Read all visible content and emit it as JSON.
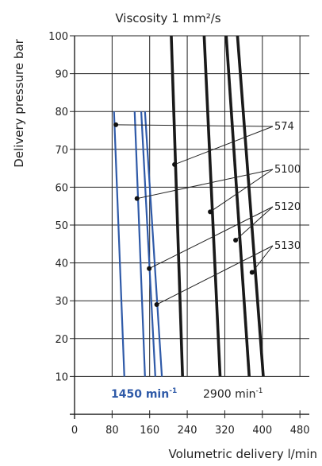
{
  "chart_data": {
    "type": "line",
    "title": "Viscosity 1 mm²/s",
    "xlabel": "Volumetric delivery l/min",
    "ylabel": "Delivery pressure bar",
    "xlim": [
      0,
      500
    ],
    "ylim": [
      0,
      100
    ],
    "x_ticks": [
      0,
      80,
      160,
      240,
      320,
      400,
      480
    ],
    "y_ticks": [
      10,
      20,
      30,
      40,
      50,
      60,
      70,
      80,
      90,
      100
    ],
    "grid": true,
    "series_groups": [
      {
        "label": "1450 min",
        "label_sup": "-1",
        "color": "#2f5aa8",
        "series": [
          {
            "x": [
              84,
              106
            ],
            "y": [
              80,
              10
            ]
          },
          {
            "x": [
              128,
              150
            ],
            "y": [
              80,
              10
            ]
          },
          {
            "x": [
              142,
              172
            ],
            "y": [
              80,
              10
            ]
          },
          {
            "x": [
              150,
              186
            ],
            "y": [
              80,
              10
            ]
          }
        ]
      },
      {
        "label": "2900 min",
        "label_sup": "-1",
        "color": "#1a1a1a",
        "series": [
          {
            "x": [
              206,
              230
            ],
            "y": [
              100,
              10
            ]
          },
          {
            "x": [
              276,
              310
            ],
            "y": [
              100,
              10
            ]
          },
          {
            "x": [
              323,
              372
            ],
            "y": [
              100,
              10
            ]
          },
          {
            "x": [
              347,
              402
            ],
            "y": [
              100,
              10
            ]
          }
        ]
      }
    ],
    "callouts": [
      {
        "label": "574",
        "points": [
          [
            88,
            76.5
          ],
          [
            213,
            66
          ]
        ]
      },
      {
        "label": "5100",
        "points": [
          [
            133,
            57
          ],
          [
            289,
            53.5
          ]
        ]
      },
      {
        "label": "5120",
        "points": [
          [
            159,
            38.5
          ],
          [
            343,
            46
          ]
        ]
      },
      {
        "label": "5130",
        "points": [
          [
            175,
            29
          ],
          [
            378,
            37.5
          ]
        ]
      }
    ]
  }
}
